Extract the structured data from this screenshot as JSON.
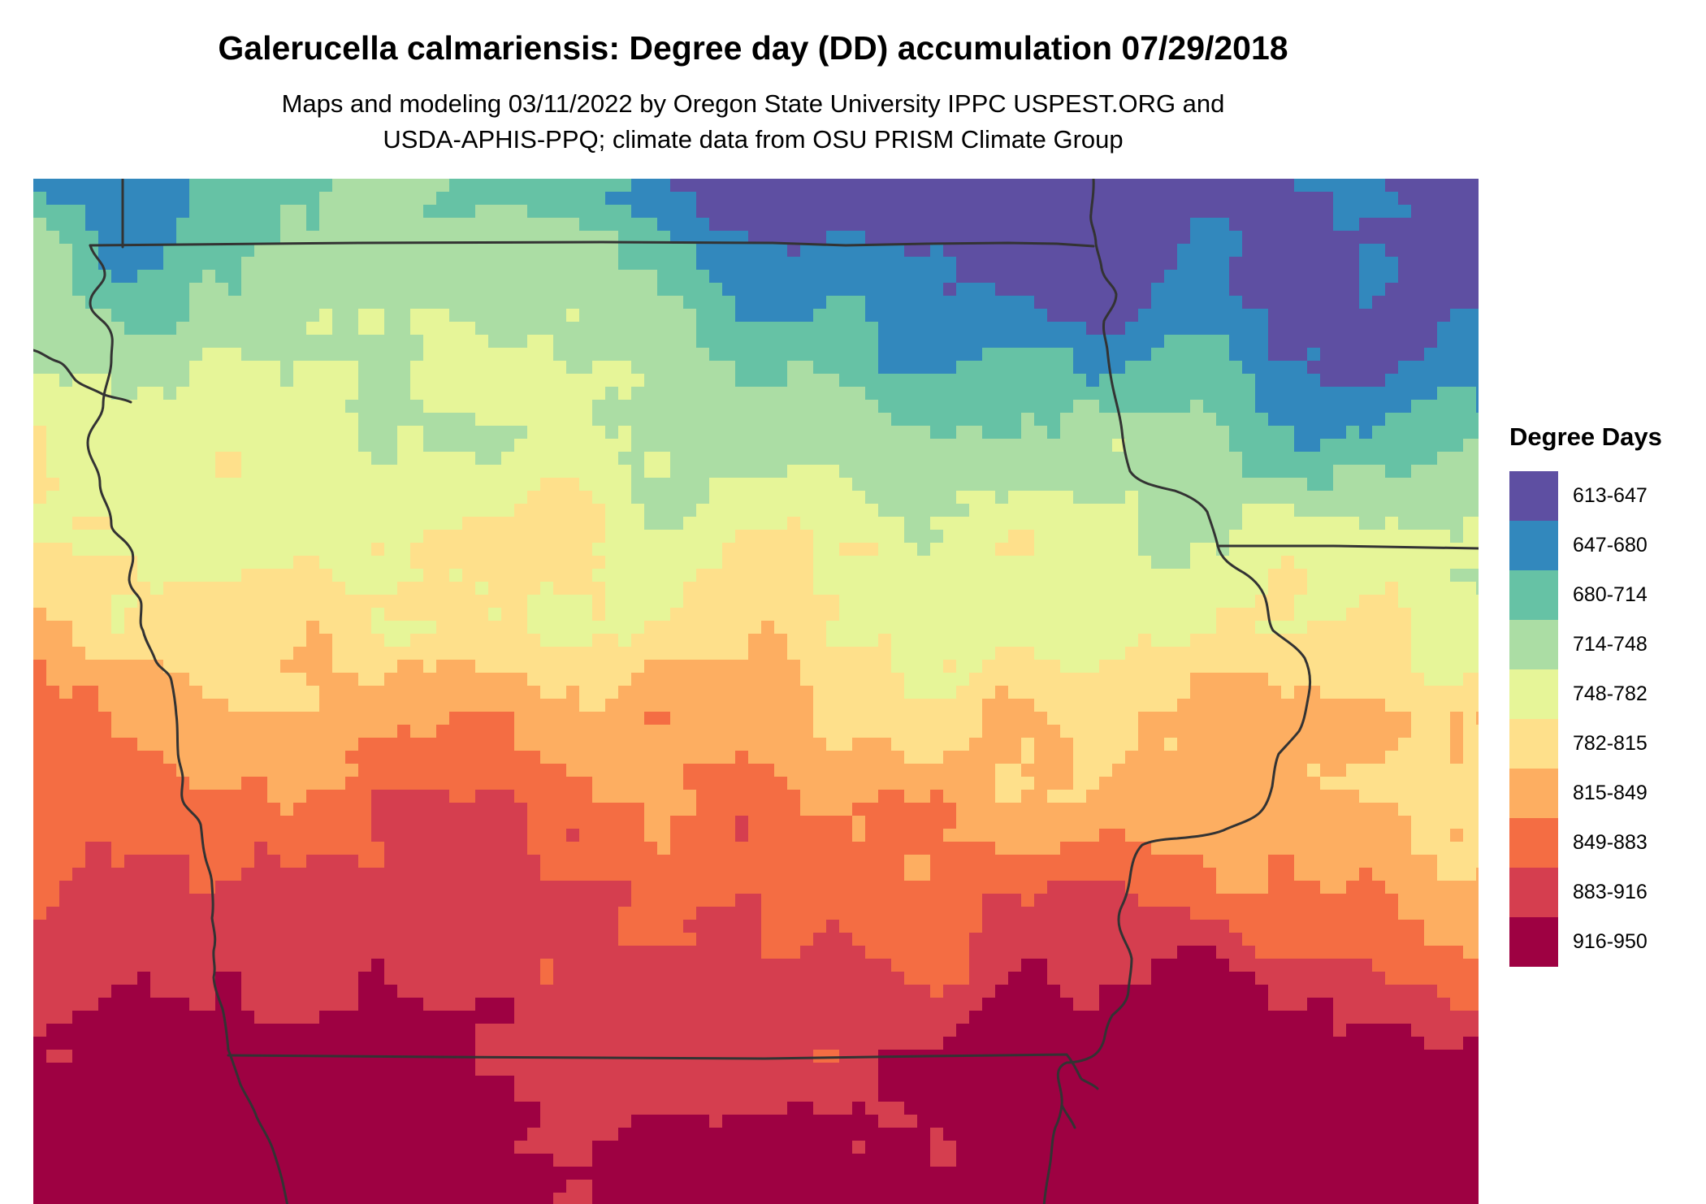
{
  "title": "Galerucella calmariensis: Degree day (DD) accumulation 07/29/2018",
  "subtitle_line1": "Maps and modeling 03/11/2022 by Oregon State University IPPC USPEST.ORG and",
  "subtitle_line2": "USDA-APHIS-PPQ; climate data from OSU PRISM Climate Group",
  "legend": {
    "title": "Degree Days",
    "items": [
      {
        "label": "613-647",
        "color": "#5e4fa2"
      },
      {
        "label": "647-680",
        "color": "#3288bd"
      },
      {
        "label": "680-714",
        "color": "#66c2a5"
      },
      {
        "label": "714-748",
        "color": "#abdda4"
      },
      {
        "label": "748-782",
        "color": "#e6f598"
      },
      {
        "label": "782-815",
        "color": "#fee08b"
      },
      {
        "label": "815-849",
        "color": "#fdae61"
      },
      {
        "label": "849-883",
        "color": "#f46d43"
      },
      {
        "label": "883-916",
        "color": "#d53e4f"
      },
      {
        "label": "916-950",
        "color": "#9e0142"
      }
    ]
  },
  "map": {
    "region": "Iowa and surrounding states",
    "boundary_color": "#333333",
    "gradient": "degree-day accumulation increases from north (613-714) to south (883-950)"
  }
}
